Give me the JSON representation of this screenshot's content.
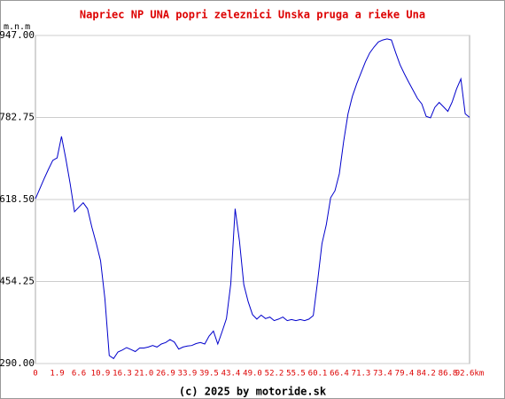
{
  "chart_data": {
    "type": "line",
    "title": "Napriec NP UNA popri zeleznici Unska pruga a rieke Una",
    "y_label": "m.n.m",
    "footer": "(c) 2025 by motoride.sk",
    "categories": [
      "0",
      null,
      null,
      null,
      null,
      "1.9",
      null,
      null,
      null,
      null,
      "6.6",
      null,
      null,
      null,
      null,
      "10.9",
      null,
      null,
      null,
      null,
      "16.3",
      null,
      null,
      null,
      null,
      "21.0",
      null,
      null,
      null,
      null,
      "26.9",
      null,
      null,
      null,
      null,
      "33.9",
      null,
      null,
      null,
      null,
      "39.5",
      null,
      null,
      null,
      null,
      "43.4",
      null,
      null,
      null,
      null,
      "49.0",
      null,
      null,
      null,
      null,
      "52.2",
      null,
      null,
      null,
      null,
      "55.5",
      null,
      null,
      null,
      null,
      "60.1",
      null,
      null,
      null,
      null,
      "66.4",
      null,
      null,
      null,
      null,
      "71.3",
      null,
      null,
      null,
      null,
      "73.4",
      null,
      null,
      null,
      null,
      "79.4",
      null,
      null,
      null,
      null,
      "84.2",
      null,
      null,
      null,
      null,
      "86.8",
      null,
      null,
      null,
      null,
      "92.6km"
    ],
    "values": [
      620,
      640,
      660,
      679,
      697,
      702,
      745,
      700,
      650,
      594,
      603,
      612,
      600,
      563,
      531,
      496,
      420,
      306,
      300,
      313,
      317,
      322,
      318,
      314,
      321,
      321,
      323,
      326,
      323,
      329,
      332,
      338,
      333,
      319,
      323,
      325,
      326,
      330,
      332,
      329,
      345,
      355,
      329,
      354,
      380,
      450,
      600,
      535,
      448,
      414,
      388,
      379,
      387,
      380,
      383,
      376,
      379,
      383,
      376,
      378,
      376,
      378,
      376,
      379,
      386,
      455,
      530,
      568,
      622,
      636,
      670,
      735,
      790,
      825,
      850,
      872,
      894,
      912,
      924,
      934,
      938,
      940,
      938,
      912,
      888,
      870,
      853,
      837,
      821,
      810,
      785,
      782,
      803,
      813,
      804,
      795,
      814,
      840,
      860,
      790,
      783
    ],
    "color": "#0000cc",
    "ylim": [
      290,
      947
    ],
    "yticks": [
      {
        "value": 290,
        "label": "290.00"
      },
      454.25,
      {
        "value": 618.5,
        "label": "618.50"
      },
      782.75,
      {
        "value": 947,
        "label": "947.00"
      }
    ],
    "grid": true
  }
}
